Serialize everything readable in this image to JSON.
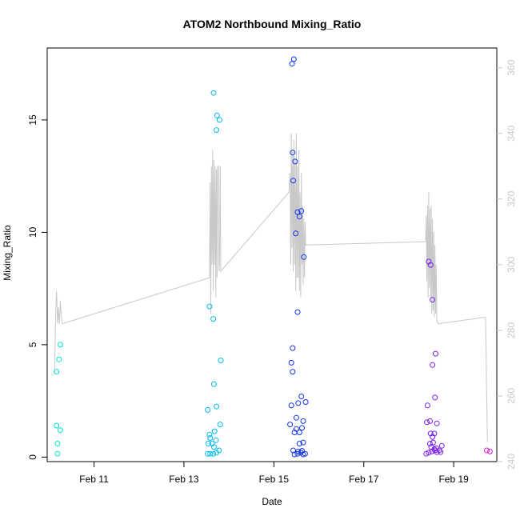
{
  "chart_data": {
    "type": "scatter",
    "title": "ATOM2 Northbound Mixing_Ratio",
    "xlabel": "Date",
    "ylabel": "Mixing_Ratio",
    "xlim": [
      "2014-02-09 23:00",
      "2014-02-19 23:00"
    ],
    "ylim": [
      -0.2,
      18.2
    ],
    "y2lim": [
      240,
      366
    ],
    "x_ticks": [
      {
        "at": "2014-02-11 00:00",
        "label": "Feb 11"
      },
      {
        "at": "2014-02-13 00:00",
        "label": "Feb 13"
      },
      {
        "at": "2014-02-15 00:00",
        "label": "Feb 15"
      },
      {
        "at": "2014-02-17 00:00",
        "label": "Feb 17"
      },
      {
        "at": "2014-02-19 00:00",
        "label": "Feb 19"
      }
    ],
    "y_ticks": [
      0,
      5,
      10,
      15
    ],
    "y2_ticks": [
      240,
      260,
      280,
      300,
      320,
      340,
      360
    ],
    "grid": false,
    "colors": {
      "line": "#c8c8c8",
      "right_axis": "#c8c8c8",
      "point_scale": [
        "#00e6cc",
        "#00bbee",
        "#1133ee",
        "#7a1ff0",
        "#dd22dd"
      ]
    },
    "points": [
      {
        "x": "2014-02-10 04:30",
        "y": 0.15,
        "c": "#00e6cc"
      },
      {
        "x": "2014-02-10 04:30",
        "y": 0.6,
        "c": "#00e6cc"
      },
      {
        "x": "2014-02-10 04:00",
        "y": 1.4,
        "c": "#00e6cc"
      },
      {
        "x": "2014-02-10 06:00",
        "y": 1.2,
        "c": "#00e6cc"
      },
      {
        "x": "2014-02-10 04:00",
        "y": 3.8,
        "c": "#00e6cc"
      },
      {
        "x": "2014-02-10 05:20",
        "y": 4.35,
        "c": "#00e6cc"
      },
      {
        "x": "2014-02-10 06:00",
        "y": 5.0,
        "c": "#00e6cc"
      },
      {
        "x": "2014-02-13 12:40",
        "y": 0.15,
        "c": "#00bbee"
      },
      {
        "x": "2014-02-13 14:00",
        "y": 0.15,
        "c": "#00bbee"
      },
      {
        "x": "2014-02-13 15:40",
        "y": 0.15,
        "c": "#00bbee"
      },
      {
        "x": "2014-02-13 17:20",
        "y": 0.2,
        "c": "#00bbee"
      },
      {
        "x": "2014-02-13 18:40",
        "y": 0.3,
        "c": "#00bbee"
      },
      {
        "x": "2014-02-13 16:00",
        "y": 0.45,
        "c": "#00bbee"
      },
      {
        "x": "2014-02-13 13:00",
        "y": 0.6,
        "c": "#00bbee"
      },
      {
        "x": "2014-02-13 15:00",
        "y": 0.6,
        "c": "#00bbee"
      },
      {
        "x": "2014-02-13 17:00",
        "y": 0.75,
        "c": "#00bbee"
      },
      {
        "x": "2014-02-13 14:00",
        "y": 0.85,
        "c": "#00bbee"
      },
      {
        "x": "2014-02-13 13:40",
        "y": 1.0,
        "c": "#00bbee"
      },
      {
        "x": "2014-02-13 16:20",
        "y": 1.15,
        "c": "#00bbee"
      },
      {
        "x": "2014-02-13 19:20",
        "y": 1.45,
        "c": "#00bbee"
      },
      {
        "x": "2014-02-13 12:40",
        "y": 2.1,
        "c": "#00bbee"
      },
      {
        "x": "2014-02-13 17:20",
        "y": 2.25,
        "c": "#00bbee"
      },
      {
        "x": "2014-02-13 16:00",
        "y": 3.25,
        "c": "#00bbee"
      },
      {
        "x": "2014-02-13 19:40",
        "y": 4.3,
        "c": "#00bbee"
      },
      {
        "x": "2014-02-13 15:40",
        "y": 6.15,
        "c": "#00bbee"
      },
      {
        "x": "2014-02-13 13:40",
        "y": 6.7,
        "c": "#00bbee"
      },
      {
        "x": "2014-02-13 17:20",
        "y": 14.55,
        "c": "#00bbee"
      },
      {
        "x": "2014-02-13 19:00",
        "y": 15.0,
        "c": "#00bbee"
      },
      {
        "x": "2014-02-13 17:40",
        "y": 15.2,
        "c": "#00bbee"
      },
      {
        "x": "2014-02-13 15:50",
        "y": 16.2,
        "c": "#00bbee"
      },
      {
        "x": "2014-02-15 11:00",
        "y": 0.12,
        "c": "#1133ee"
      },
      {
        "x": "2014-02-15 12:40",
        "y": 0.15,
        "c": "#1133ee"
      },
      {
        "x": "2014-02-15 14:20",
        "y": 0.2,
        "c": "#1133ee"
      },
      {
        "x": "2014-02-15 15:40",
        "y": 0.12,
        "c": "#1133ee"
      },
      {
        "x": "2014-02-15 16:40",
        "y": 0.15,
        "c": "#1133ee"
      },
      {
        "x": "2014-02-15 10:20",
        "y": 0.3,
        "c": "#1133ee"
      },
      {
        "x": "2014-02-15 13:00",
        "y": 0.25,
        "c": "#1133ee"
      },
      {
        "x": "2014-02-15 15:00",
        "y": 0.28,
        "c": "#1133ee"
      },
      {
        "x": "2014-02-15 13:40",
        "y": 0.6,
        "c": "#1133ee"
      },
      {
        "x": "2014-02-15 15:40",
        "y": 0.65,
        "c": "#1133ee"
      },
      {
        "x": "2014-02-15 11:00",
        "y": 1.1,
        "c": "#1133ee"
      },
      {
        "x": "2014-02-15 13:40",
        "y": 1.1,
        "c": "#1133ee"
      },
      {
        "x": "2014-02-15 12:00",
        "y": 1.25,
        "c": "#1133ee"
      },
      {
        "x": "2014-02-15 15:00",
        "y": 1.3,
        "c": "#1133ee"
      },
      {
        "x": "2014-02-15 08:40",
        "y": 1.45,
        "c": "#1133ee"
      },
      {
        "x": "2014-02-15 15:40",
        "y": 1.6,
        "c": "#1133ee"
      },
      {
        "x": "2014-02-15 12:00",
        "y": 1.75,
        "c": "#1133ee"
      },
      {
        "x": "2014-02-15 09:20",
        "y": 2.3,
        "c": "#1133ee"
      },
      {
        "x": "2014-02-15 13:00",
        "y": 2.4,
        "c": "#1133ee"
      },
      {
        "x": "2014-02-15 17:00",
        "y": 2.45,
        "c": "#1133ee"
      },
      {
        "x": "2014-02-15 14:40",
        "y": 2.7,
        "c": "#1133ee"
      },
      {
        "x": "2014-02-15 10:00",
        "y": 3.8,
        "c": "#1133ee"
      },
      {
        "x": "2014-02-15 09:20",
        "y": 4.2,
        "c": "#1133ee"
      },
      {
        "x": "2014-02-15 10:00",
        "y": 4.85,
        "c": "#1133ee"
      },
      {
        "x": "2014-02-15 12:40",
        "y": 6.45,
        "c": "#1133ee"
      },
      {
        "x": "2014-02-15 16:00",
        "y": 8.9,
        "c": "#1133ee"
      },
      {
        "x": "2014-02-15 11:40",
        "y": 9.95,
        "c": "#1133ee"
      },
      {
        "x": "2014-02-15 13:40",
        "y": 10.7,
        "c": "#1133ee"
      },
      {
        "x": "2014-02-15 12:40",
        "y": 10.9,
        "c": "#1133ee"
      },
      {
        "x": "2014-02-15 14:40",
        "y": 10.95,
        "c": "#1133ee"
      },
      {
        "x": "2014-02-15 10:20",
        "y": 12.3,
        "c": "#1133ee"
      },
      {
        "x": "2014-02-15 11:20",
        "y": 13.15,
        "c": "#1133ee"
      },
      {
        "x": "2014-02-15 10:00",
        "y": 13.55,
        "c": "#1133ee"
      },
      {
        "x": "2014-02-15 09:40",
        "y": 17.5,
        "c": "#1133ee"
      },
      {
        "x": "2014-02-15 10:40",
        "y": 17.7,
        "c": "#1133ee"
      },
      {
        "x": "2014-02-18 09:20",
        "y": 0.15,
        "c": "#7a1ff0"
      },
      {
        "x": "2014-02-18 10:40",
        "y": 0.2,
        "c": "#7a1ff0"
      },
      {
        "x": "2014-02-18 12:20",
        "y": 0.25,
        "c": "#7a1ff0"
      },
      {
        "x": "2014-02-18 13:40",
        "y": 0.35,
        "c": "#7a1ff0"
      },
      {
        "x": "2014-02-18 14:00",
        "y": 0.3,
        "c": "#7a1ff0"
      },
      {
        "x": "2014-02-18 15:00",
        "y": 0.22,
        "c": "#7a1ff0"
      },
      {
        "x": "2014-02-18 16:20",
        "y": 0.3,
        "c": "#7a1ff0"
      },
      {
        "x": "2014-02-18 17:00",
        "y": 0.22,
        "c": "#7a1ff0"
      },
      {
        "x": "2014-02-18 12:00",
        "y": 0.45,
        "c": "#7a1ff0"
      },
      {
        "x": "2014-02-18 14:40",
        "y": 0.4,
        "c": "#7a1ff0"
      },
      {
        "x": "2014-02-18 11:20",
        "y": 0.6,
        "c": "#7a1ff0"
      },
      {
        "x": "2014-02-18 13:00",
        "y": 0.65,
        "c": "#7a1ff0"
      },
      {
        "x": "2014-02-18 17:40",
        "y": 0.5,
        "c": "#7a1ff0"
      },
      {
        "x": "2014-02-18 12:40",
        "y": 0.9,
        "c": "#7a1ff0"
      },
      {
        "x": "2014-02-18 11:40",
        "y": 1.05,
        "c": "#7a1ff0"
      },
      {
        "x": "2014-02-18 13:40",
        "y": 1.05,
        "c": "#7a1ff0"
      },
      {
        "x": "2014-02-18 09:40",
        "y": 1.55,
        "c": "#7a1ff0"
      },
      {
        "x": "2014-02-18 11:20",
        "y": 1.6,
        "c": "#7a1ff0"
      },
      {
        "x": "2014-02-18 15:00",
        "y": 1.5,
        "c": "#7a1ff0"
      },
      {
        "x": "2014-02-18 10:00",
        "y": 2.3,
        "c": "#7a1ff0"
      },
      {
        "x": "2014-02-18 14:00",
        "y": 2.65,
        "c": "#7a1ff0"
      },
      {
        "x": "2014-02-18 12:40",
        "y": 4.1,
        "c": "#7a1ff0"
      },
      {
        "x": "2014-02-18 14:20",
        "y": 4.6,
        "c": "#7a1ff0"
      },
      {
        "x": "2014-02-18 12:40",
        "y": 7.0,
        "c": "#7a1ff0"
      },
      {
        "x": "2014-02-18 11:40",
        "y": 8.55,
        "c": "#7a1ff0"
      },
      {
        "x": "2014-02-18 10:40",
        "y": 8.7,
        "c": "#7a1ff0"
      },
      {
        "x": "2014-02-19 17:40",
        "y": 0.3,
        "c": "#dd22dd"
      },
      {
        "x": "2014-02-19 19:20",
        "y": 0.25,
        "c": "#dd22dd"
      }
    ],
    "line": [
      [
        "2014-02-10 03:00",
        267
      ],
      [
        "2014-02-10 03:30",
        285
      ],
      [
        "2014-02-10 04:00",
        292
      ],
      [
        "2014-02-10 04:30",
        282
      ],
      [
        "2014-02-10 05:00",
        287
      ],
      [
        "2014-02-10 05:30",
        282
      ],
      [
        "2014-02-10 06:00",
        289
      ],
      [
        "2014-02-10 06:40",
        283
      ],
      [
        "2014-02-10 07:00",
        282
      ],
      [
        "2014-02-13 13:40",
        296
      ],
      [
        "2014-02-13 14:00",
        325
      ],
      [
        "2014-02-13 14:20",
        285
      ],
      [
        "2014-02-13 14:40",
        330
      ],
      [
        "2014-02-13 15:00",
        300
      ],
      [
        "2014-02-13 15:20",
        335
      ],
      [
        "2014-02-13 15:40",
        292
      ],
      [
        "2014-02-13 16:00",
        332
      ],
      [
        "2014-02-13 16:20",
        300
      ],
      [
        "2014-02-13 16:40",
        330
      ],
      [
        "2014-02-13 17:00",
        290
      ],
      [
        "2014-02-13 17:20",
        329
      ],
      [
        "2014-02-13 17:40",
        296
      ],
      [
        "2014-02-13 18:00",
        330
      ],
      [
        "2014-02-13 18:20",
        330
      ],
      [
        "2014-02-13 18:40",
        298
      ],
      [
        "2014-02-13 19:00",
        300
      ],
      [
        "2014-02-13 19:20",
        330
      ],
      [
        "2014-02-13 19:40",
        298
      ],
      [
        "2014-02-15 08:00",
        322
      ],
      [
        "2014-02-15 08:40",
        328
      ],
      [
        "2014-02-15 09:00",
        300
      ],
      [
        "2014-02-15 09:20",
        340
      ],
      [
        "2014-02-15 09:40",
        305
      ],
      [
        "2014-02-15 10:00",
        335
      ],
      [
        "2014-02-15 10:20",
        298
      ],
      [
        "2014-02-15 10:40",
        338
      ],
      [
        "2014-02-15 11:00",
        300
      ],
      [
        "2014-02-15 11:20",
        332
      ],
      [
        "2014-02-15 11:40",
        292
      ],
      [
        "2014-02-15 12:00",
        340
      ],
      [
        "2014-02-15 12:20",
        296
      ],
      [
        "2014-02-15 12:40",
        330
      ],
      [
        "2014-02-15 13:00",
        296
      ],
      [
        "2014-02-15 13:20",
        335
      ],
      [
        "2014-02-15 13:40",
        292
      ],
      [
        "2014-02-15 14:00",
        322
      ],
      [
        "2014-02-15 14:20",
        290
      ],
      [
        "2014-02-15 14:40",
        328
      ],
      [
        "2014-02-15 15:00",
        300
      ],
      [
        "2014-02-15 15:20",
        318
      ],
      [
        "2014-02-15 15:40",
        294
      ],
      [
        "2014-02-15 16:00",
        314
      ],
      [
        "2014-02-15 16:20",
        296
      ],
      [
        "2014-02-15 16:40",
        313
      ],
      [
        "2014-02-15 17:00",
        306
      ],
      [
        "2014-02-18 09:00",
        307
      ],
      [
        "2014-02-18 09:20",
        315
      ],
      [
        "2014-02-18 09:40",
        295
      ],
      [
        "2014-02-18 10:00",
        318
      ],
      [
        "2014-02-18 10:20",
        290
      ],
      [
        "2014-02-18 10:40",
        322
      ],
      [
        "2014-02-18 11:00",
        293
      ],
      [
        "2014-02-18 11:20",
        317
      ],
      [
        "2014-02-18 11:40",
        290
      ],
      [
        "2014-02-18 12:00",
        318
      ],
      [
        "2014-02-18 12:20",
        285
      ],
      [
        "2014-02-18 12:40",
        314
      ],
      [
        "2014-02-18 13:00",
        286
      ],
      [
        "2014-02-18 13:20",
        310
      ],
      [
        "2014-02-18 13:40",
        284
      ],
      [
        "2014-02-18 14:00",
        306
      ],
      [
        "2014-02-18 14:20",
        285
      ],
      [
        "2014-02-18 14:40",
        300
      ],
      [
        "2014-02-18 15:00",
        283
      ],
      [
        "2014-02-18 15:40",
        282
      ],
      [
        "2014-02-19 17:00",
        284
      ],
      [
        "2014-02-19 18:00",
        246
      ]
    ]
  }
}
